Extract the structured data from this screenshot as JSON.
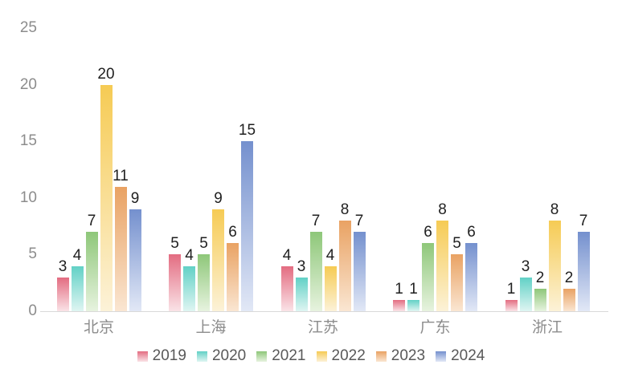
{
  "chart_data": {
    "type": "bar",
    "title": "",
    "categories": [
      "北京",
      "上海",
      "江苏",
      "广东",
      "浙江"
    ],
    "series": [
      {
        "name": "2019",
        "color": "#E36C81",
        "color_light": "#FAE3E7",
        "values": [
          3,
          5,
          4,
          1,
          1
        ]
      },
      {
        "name": "2020",
        "color": "#62D1C6",
        "color_light": "#DFF5F2",
        "values": [
          4,
          4,
          3,
          1,
          3
        ]
      },
      {
        "name": "2021",
        "color": "#8EC779",
        "color_light": "#E7F3DF",
        "values": [
          7,
          5,
          7,
          6,
          2
        ]
      },
      {
        "name": "2022",
        "color": "#F6CB54",
        "color_light": "#FCF2D8",
        "values": [
          20,
          9,
          4,
          8,
          8
        ]
      },
      {
        "name": "2023",
        "color": "#E9A263",
        "color_light": "#FAE6D2",
        "values": [
          11,
          6,
          8,
          5,
          2
        ]
      },
      {
        "name": "2024",
        "color": "#7490CE",
        "color_light": "#E2E8F6",
        "values": [
          9,
          15,
          7,
          6,
          7
        ]
      }
    ],
    "y_ticks": [
      0,
      5,
      10,
      15,
      20,
      25
    ],
    "ylim": [
      0,
      25
    ],
    "grid": false,
    "legend_position": "bottom",
    "background_color": "#FFFFFF",
    "axis_line_color": "#D9D9D9",
    "tick_label_color": "#8C8C8C",
    "category_label_color": "#8C8C8C",
    "value_label_color": "#1F1F1F",
    "legend_label_color": "#595959"
  }
}
